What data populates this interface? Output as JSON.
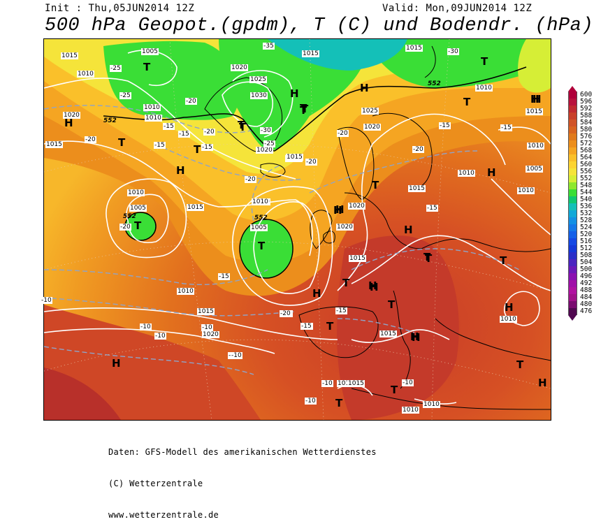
{
  "header": {
    "init": "Init : Thu,05JUN2014 12Z",
    "valid": "Valid: Mon,09JUN2014 12Z",
    "title": "500 hPa Geopot.(gpdm), T (C) und Bodendr. (hPa)"
  },
  "legend": {
    "labels": [
      "600",
      "596",
      "592",
      "588",
      "584",
      "580",
      "576",
      "572",
      "568",
      "564",
      "560",
      "556",
      "552",
      "548",
      "544",
      "540",
      "536",
      "532",
      "528",
      "524",
      "520",
      "516",
      "512",
      "508",
      "504",
      "500",
      "496",
      "492",
      "488",
      "484",
      "480",
      "476"
    ],
    "colors": [
      "#b0003a",
      "#b8123c",
      "#c02a30",
      "#c8402a",
      "#d05428",
      "#d86420",
      "#e07a1c",
      "#ec8e1c",
      "#f5a522",
      "#fac02a",
      "#fdd432",
      "#f5e43a",
      "#d6ee36",
      "#8ee82e",
      "#3ade36",
      "#10c870",
      "#14c0b8",
      "#10a8d8",
      "#1290e4",
      "#1478e8",
      "#1460e8",
      "#1448e4",
      "#1438d8",
      "#2a2ec8",
      "#4a24c0",
      "#6a18b8",
      "#8a10b0",
      "#a010a8",
      "#b012a0",
      "#a0128a",
      "#7a0c70",
      "#500850"
    ]
  },
  "map_labels": {
    "highs": [
      "H",
      "H",
      "H",
      "H",
      "H",
      "H",
      "H",
      "H",
      "H",
      "H",
      "H",
      "H",
      "H",
      "H",
      "H",
      "H",
      "H",
      "H"
    ],
    "lows": [
      "T",
      "T",
      "T",
      "T",
      "T",
      "T",
      "T",
      "T",
      "T",
      "T",
      "T",
      "T",
      "T",
      "T",
      "T",
      "T",
      "T",
      "T",
      "T",
      "T",
      "T",
      "T"
    ],
    "isobars": [
      "1015",
      "1005",
      "1010",
      "1015",
      "1020",
      "1025",
      "1030",
      "1015",
      "1005",
      "1010",
      "1015",
      "1020",
      "1020",
      "1015",
      "1010",
      "1025",
      "1020",
      "1015",
      "1010",
      "1005",
      "1010",
      "1010",
      "1015",
      "1010",
      "1005",
      "1010",
      "1015",
      "1020",
      "1015",
      "1020",
      "1015",
      "1010",
      "1015",
      "1010",
      "1010",
      "1020",
      "1015",
      "1010",
      "1010",
      "1015",
      "1010",
      "1010"
    ],
    "temps": [
      "-25",
      "-35",
      "-30",
      "-25",
      "-20",
      "-20",
      "-15",
      "-15",
      "-15",
      "-20",
      "-15",
      "-25",
      "-30",
      "-20",
      "-20",
      "-20",
      "-15",
      "-15",
      "-20",
      "-20",
      "-15",
      "-10",
      "-10",
      "-10",
      "-15",
      "-10",
      "-10",
      "-10",
      "-10",
      "-15",
      "-15",
      "-15",
      "-20",
      "-10",
      "-20",
      "-10"
    ],
    "contours": [
      "552",
      "552",
      "552",
      "552"
    ]
  },
  "footer": {
    "line1": "Daten: GFS-Modell des amerikanischen Wetterdienstes",
    "line2": "(C) Wetterzentrale",
    "line3": "www.wetterzentrale.de"
  }
}
